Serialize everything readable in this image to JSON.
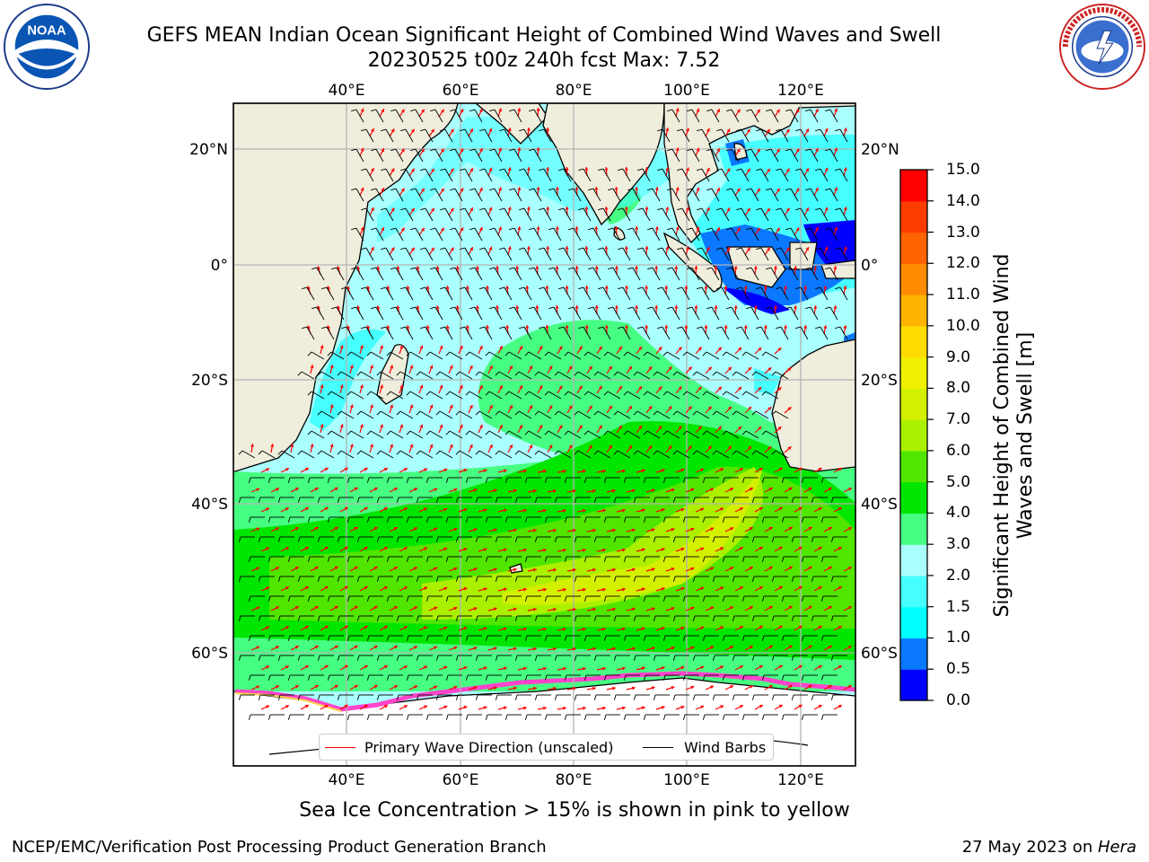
{
  "header": {
    "title_line1": "GEFS MEAN Indian Ocean Significant Height of Combined Wind Waves and Swell",
    "title_line2": "20230525 t00z 240h fcst   Max: 7.52"
  },
  "logos": {
    "left": {
      "name": "NOAA",
      "text": "NOAA",
      "ring_text": "NATIONAL OCEANIC AND ATMOSPHERIC ADMINISTRATION · U.S. DEPARTMENT OF COMMERCE"
    },
    "right": {
      "name": "National Weather Service",
      "ring_text": "NATIONAL WEATHER SERVICE"
    }
  },
  "map": {
    "lon_labels_top": [
      "40°E",
      "60°E",
      "80°E",
      "100°E",
      "120°E"
    ],
    "lon_labels_bottom": [
      "40°E",
      "60°E",
      "80°E",
      "100°E",
      "120°E"
    ],
    "lat_labels_left": [
      "20°N",
      "0°",
      "20°S",
      "40°S",
      "60°S"
    ],
    "lat_labels_right": [
      "20°N",
      "0°",
      "20°S",
      "40°S",
      "60°S"
    ],
    "land_color": "#efeddc",
    "grid_color": "#b4b4b4"
  },
  "colorbar": {
    "label": "Significant Height of Combined Wind Waves and Swell [m]",
    "ticks": [
      "0.0",
      "0.5",
      "1.0",
      "1.5",
      "2.0",
      "3.0",
      "4.0",
      "5.0",
      "6.0",
      "7.0",
      "8.0",
      "9.0",
      "10.0",
      "11.0",
      "12.0",
      "13.0",
      "14.0",
      "15.0"
    ],
    "colors": [
      "#0000ff",
      "#0a78ff",
      "#00ffff",
      "#46ffff",
      "#aaffff",
      "#46ff82",
      "#00e600",
      "#50e600",
      "#aaf000",
      "#d2f000",
      "#f0f000",
      "#ffdc00",
      "#ffb400",
      "#ff8c00",
      "#ff6400",
      "#ff3c00",
      "#ff0000"
    ]
  },
  "legend": {
    "items": [
      {
        "label": "Primary Wave Direction (unscaled)",
        "color": "#ff0000"
      },
      {
        "label": "Wind Barbs",
        "color": "#000000"
      }
    ]
  },
  "captions": {
    "ice": "Sea Ice Concentration > 15% is shown in pink to yellow"
  },
  "footer": {
    "left": "NCEP/EMC/Verification Post Processing Product Generation Branch",
    "right_prefix": "27 May 2023 on ",
    "right_host": "Hera"
  }
}
